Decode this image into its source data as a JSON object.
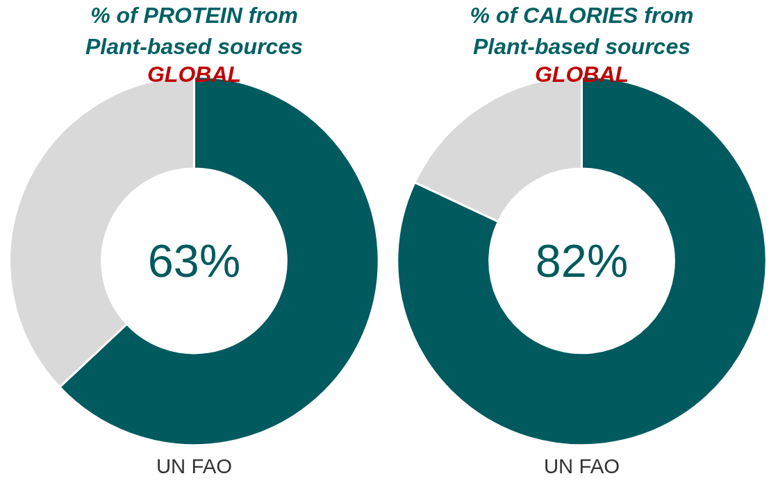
{
  "chart_data": [
    {
      "type": "donut",
      "title": "% of PROTEIN from\nPlant-based sources",
      "subtitle": "GLOBAL",
      "categories": [
        null,
        null
      ],
      "values": [
        63,
        37
      ],
      "colors": [
        "#005a5e",
        "#d9d9d9"
      ],
      "annotations": [
        "63%",
        "UN FAO"
      ]
    },
    {
      "type": "donut",
      "title": "% of CALORIES from\nPlant-based sources",
      "subtitle": "GLOBAL",
      "categories": [
        null,
        null
      ],
      "values": [
        82,
        18
      ],
      "colors": [
        "#005a5e",
        "#d9d9d9"
      ],
      "annotations": [
        "82%",
        "UN FAO"
      ]
    }
  ]
}
